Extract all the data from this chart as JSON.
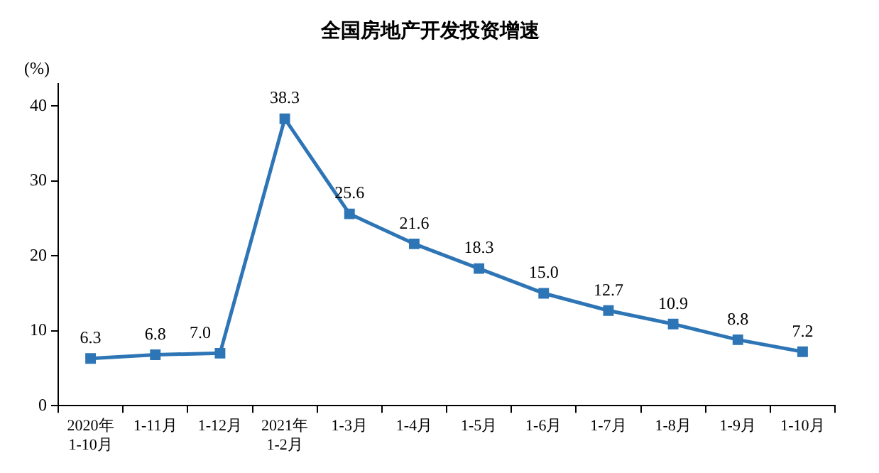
{
  "chart_data": {
    "type": "line",
    "title": "全国房地产开发投资增速",
    "ylabel": "(%)",
    "categories": [
      "2020年\n1-10月",
      "1-11月",
      "1-12月",
      "2021年\n1-2月",
      "1-3月",
      "1-4月",
      "1-5月",
      "1-6月",
      "1-7月",
      "1-8月",
      "1-9月",
      "1-10月"
    ],
    "series": [
      {
        "color": "#2e75b6",
        "values": [
          6.3,
          6.8,
          7.0,
          38.3,
          25.6,
          21.6,
          18.3,
          15.0,
          12.7,
          10.9,
          8.8,
          7.2
        ],
        "value_labels": [
          "6.3",
          "6.8",
          "7.0",
          "38.3",
          "25.6",
          "21.6",
          "18.3",
          "15.0",
          "12.7",
          "10.9",
          "8.8",
          "7.2"
        ]
      }
    ],
    "ylim": [
      0,
      43
    ],
    "yticks": [
      0,
      10,
      20,
      30,
      40
    ],
    "grid": false,
    "legend": false,
    "marker": "square",
    "line_style": "solid"
  }
}
